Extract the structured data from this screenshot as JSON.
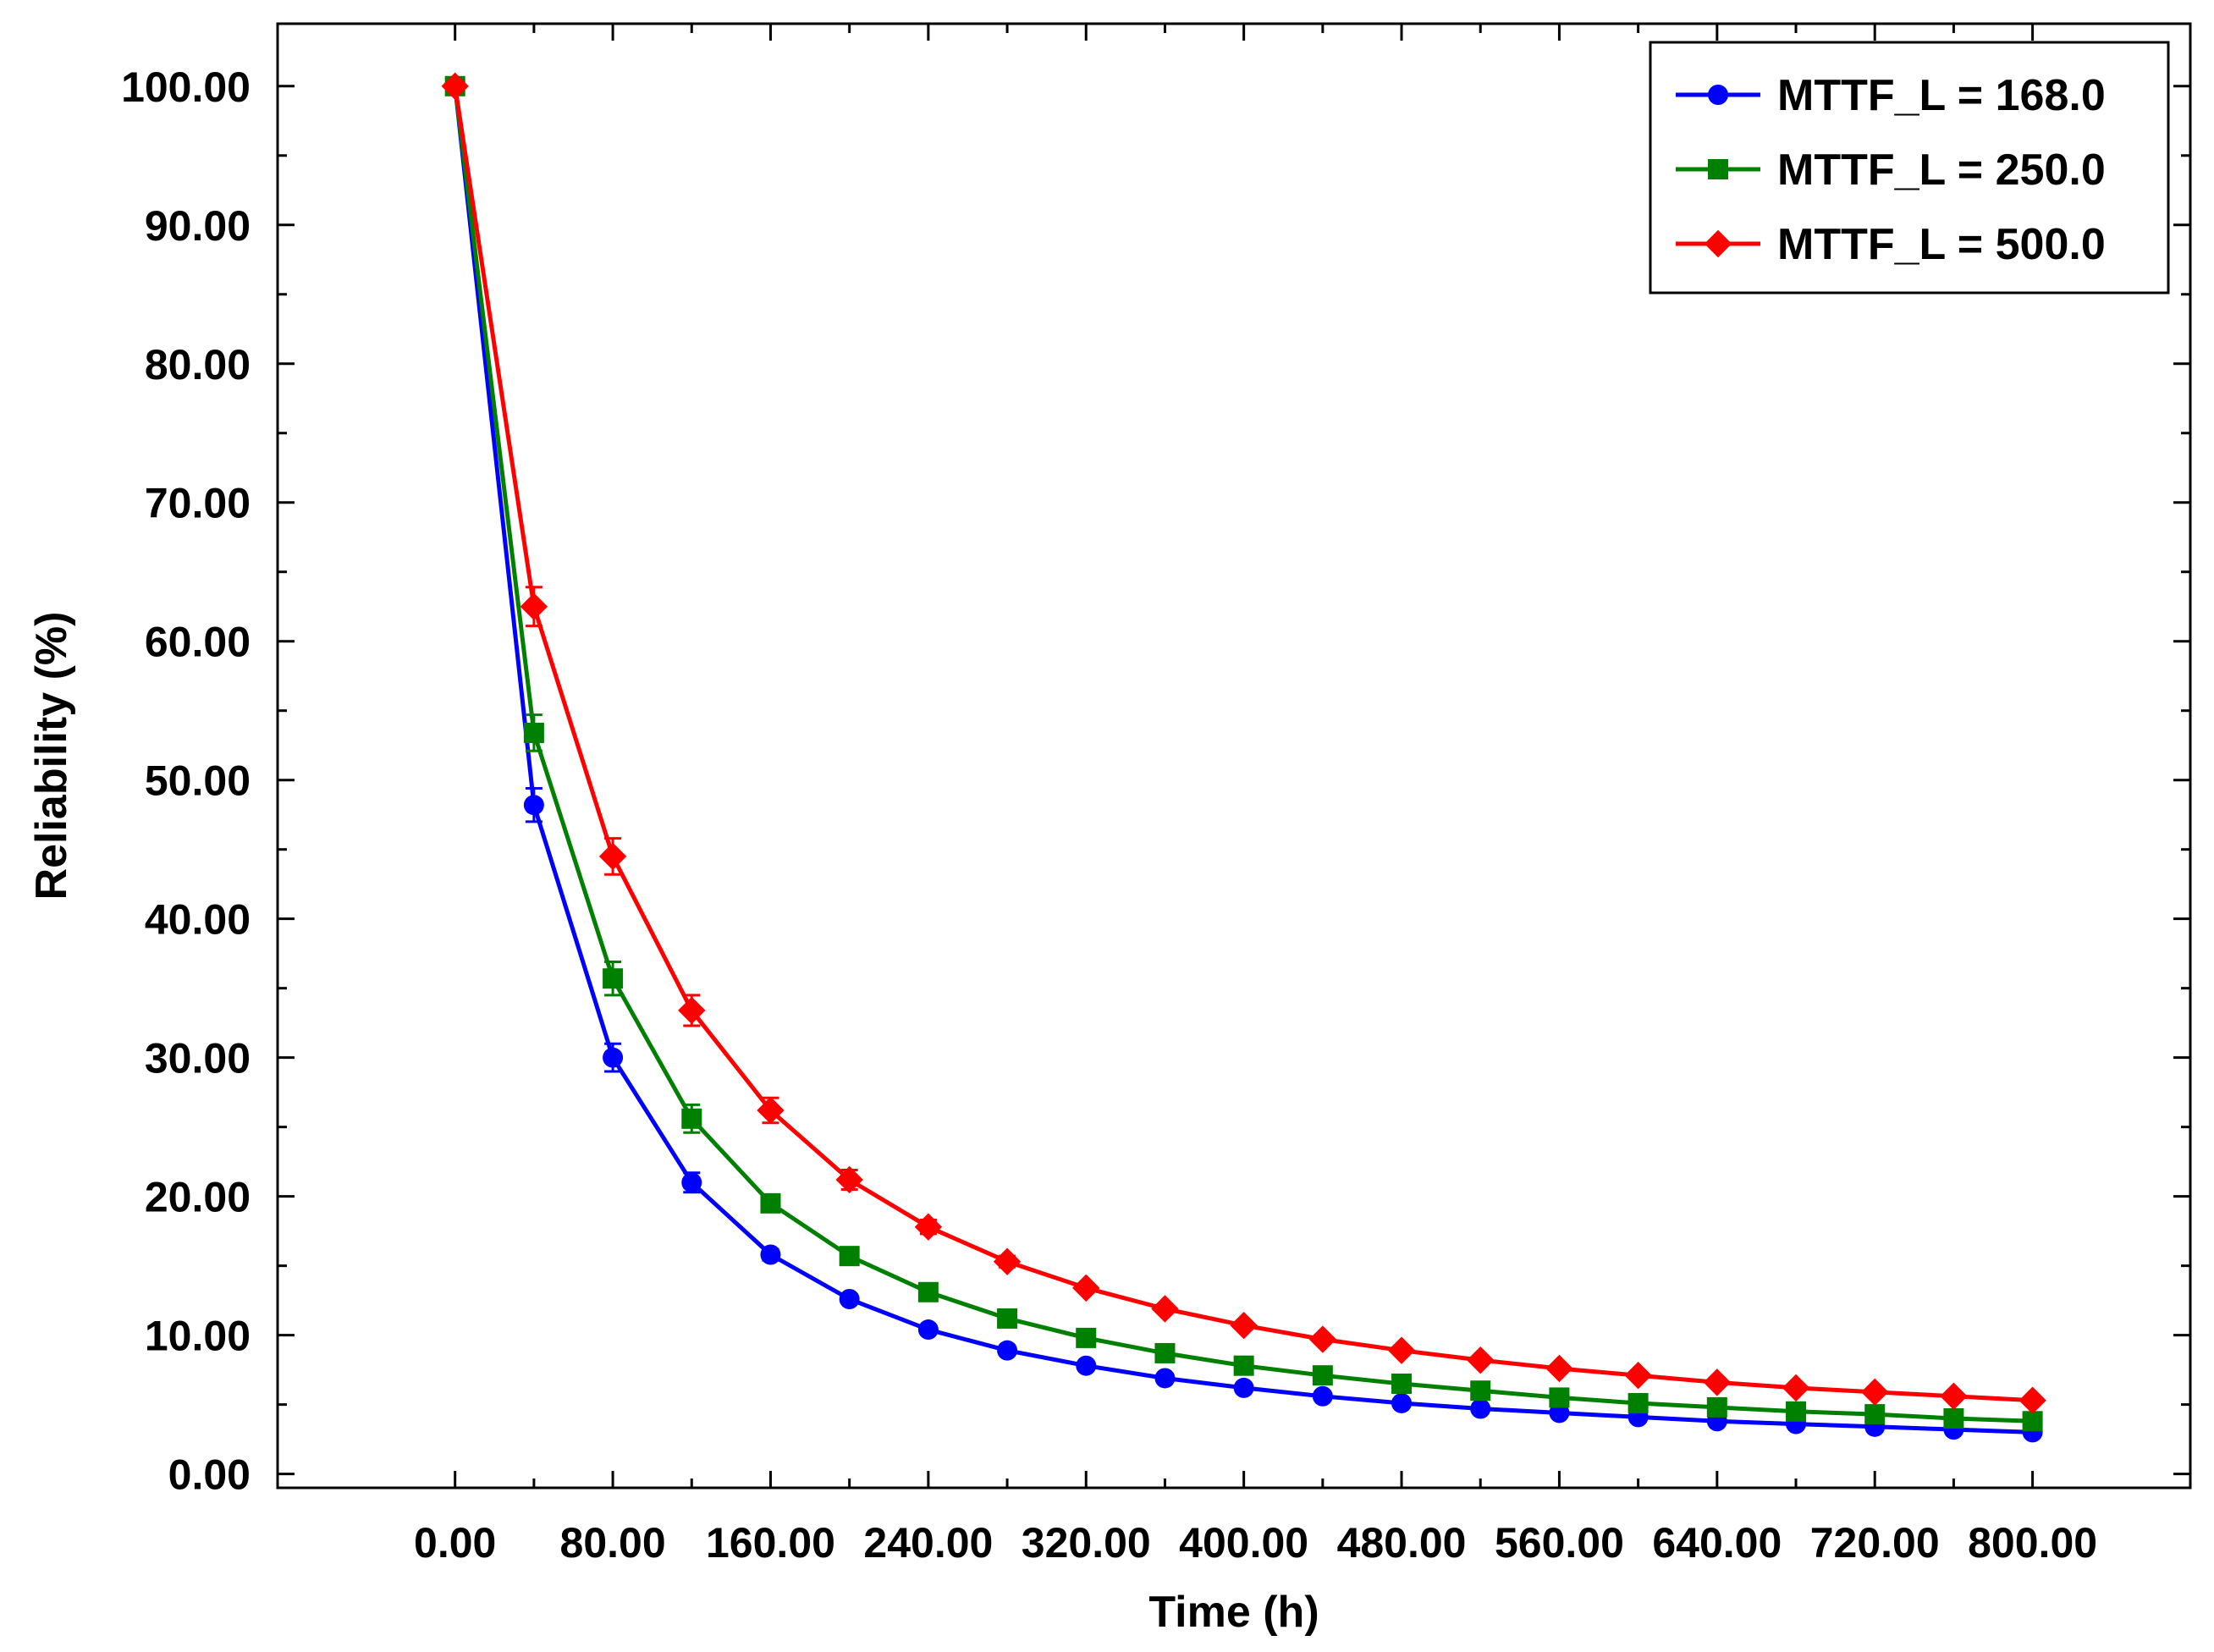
{
  "chart_data": {
    "type": "line",
    "title": "",
    "xlabel": "Time (h)",
    "ylabel": "Reliability (%)",
    "xlim": [
      -90,
      880
    ],
    "ylim": [
      -1,
      104.5
    ],
    "xticks": [
      "0.00",
      "80.00",
      "160.00",
      "240.00",
      "320.00",
      "400.00",
      "480.00",
      "560.00",
      "640.00",
      "720.00",
      "800.00"
    ],
    "yticks": [
      "0.00",
      "10.00",
      "20.00",
      "30.00",
      "40.00",
      "50.00",
      "60.00",
      "70.00",
      "80.00",
      "90.00",
      "100.00"
    ],
    "legend_position": "top-right",
    "x": [
      0,
      40,
      80,
      120,
      160,
      200,
      240,
      280,
      320,
      360,
      400,
      440,
      480,
      520,
      560,
      600,
      640,
      680,
      720,
      760,
      800
    ],
    "series": [
      {
        "name": "MTTF_L = 168.0",
        "color": "#0000ff",
        "marker": "circle",
        "values": [
          100.0,
          48.2,
          30.0,
          21.0,
          15.8,
          12.6,
          10.4,
          8.9,
          7.8,
          6.9,
          6.2,
          5.6,
          5.1,
          4.7,
          4.4,
          4.1,
          3.8,
          3.6,
          3.4,
          3.2,
          3.0
        ],
        "errors": [
          0.3,
          1.2,
          1.0,
          0.7,
          0.4,
          0.3,
          0.3,
          0.2,
          0.2,
          0.2,
          0.2,
          0.2,
          0.2,
          0.2,
          0.2,
          0.2,
          0.2,
          0.2,
          0.2,
          0.2,
          0.2
        ]
      },
      {
        "name": "MTTF_L = 250.0",
        "color": "#008000",
        "marker": "square",
        "values": [
          100.0,
          53.4,
          35.7,
          25.6,
          19.5,
          15.7,
          13.1,
          11.2,
          9.8,
          8.7,
          7.8,
          7.1,
          6.5,
          6.0,
          5.5,
          5.1,
          4.8,
          4.5,
          4.3,
          4.0,
          3.8
        ],
        "errors": [
          0.3,
          1.3,
          1.2,
          1.0,
          0.6,
          0.4,
          0.3,
          0.3,
          0.2,
          0.2,
          0.2,
          0.2,
          0.2,
          0.2,
          0.2,
          0.2,
          0.2,
          0.2,
          0.2,
          0.2,
          0.2
        ]
      },
      {
        "name": "MTTF_L = 500.0",
        "color": "#ff0000",
        "marker": "diamond",
        "values": [
          100.0,
          62.5,
          44.5,
          33.4,
          26.2,
          21.2,
          17.8,
          15.3,
          13.4,
          11.9,
          10.7,
          9.7,
          8.9,
          8.2,
          7.6,
          7.1,
          6.6,
          6.2,
          5.9,
          5.6,
          5.3
        ],
        "errors": [
          0.3,
          1.4,
          1.3,
          1.1,
          0.9,
          0.7,
          0.5,
          0.4,
          0.3,
          0.3,
          0.3,
          0.3,
          0.2,
          0.2,
          0.2,
          0.2,
          0.2,
          0.2,
          0.2,
          0.2,
          0.2
        ]
      }
    ]
  }
}
